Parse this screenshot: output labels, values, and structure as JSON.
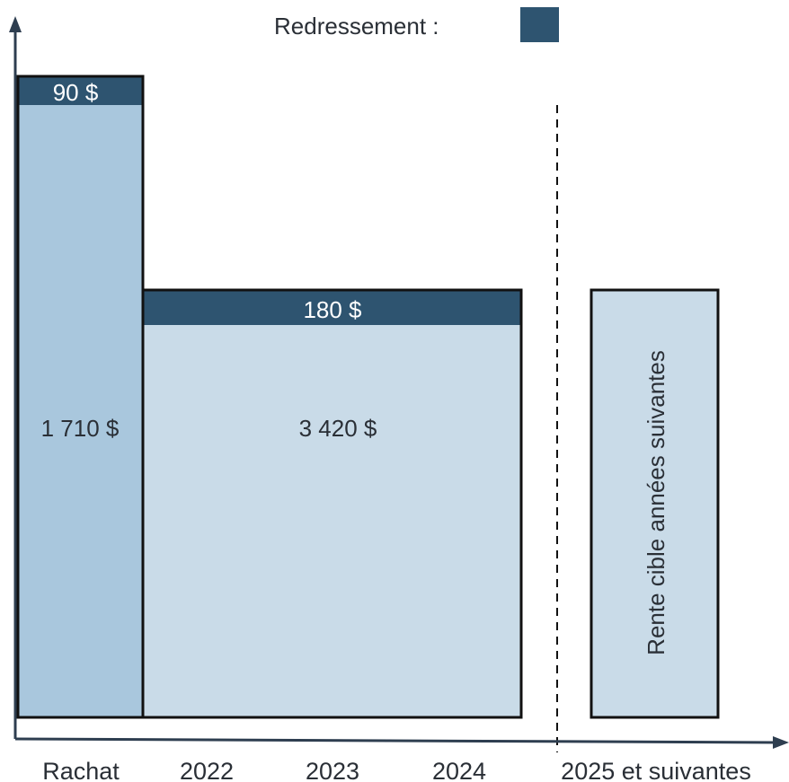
{
  "legend": {
    "label": "Redressement :",
    "swatch_color": "#2e5470"
  },
  "blocks": {
    "rachat": {
      "base_label": "1 710 $",
      "adjust_label": "90 $"
    },
    "years": {
      "base_label": "3 420 $",
      "adjust_label": "180 $"
    },
    "future": {
      "label": "Rente cible années suivantes"
    }
  },
  "axis": {
    "ticks": [
      "Rachat",
      "2022",
      "2023",
      "2024",
      "2025 et suivantes"
    ]
  },
  "colors": {
    "adjust": "#2e5470",
    "rachat_fill": "#a9c7dd",
    "years_fill": "#c9dbe8",
    "future_fill": "#c9dbe8",
    "axis": "#2e3e50",
    "outline": "#111111"
  }
}
